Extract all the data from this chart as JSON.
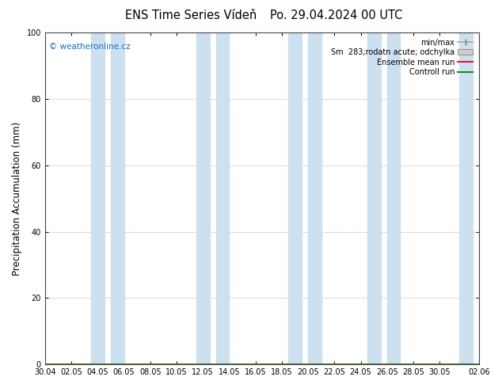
{
  "title_left": "ENS Time Series Vídeň",
  "title_right": "Po. 29.04.2024 00 UTC",
  "ylabel": "Precipitation Accumulation (mm)",
  "watermark": "© weatheronline.cz",
  "watermark_color": "#1a6fba",
  "ylim": [
    0,
    100
  ],
  "yticks": [
    0,
    20,
    40,
    60,
    80,
    100
  ],
  "x_tick_labels": [
    "30.04",
    "02.05",
    "04.05",
    "06.05",
    "08.05",
    "10.05",
    "12.05",
    "14.05",
    "16.05",
    "18.05",
    "20.05",
    "22.05",
    "24.05",
    "26.05",
    "28.05",
    "30.05",
    "02.06"
  ],
  "x_tick_positions": [
    0,
    2,
    4,
    6,
    8,
    10,
    12,
    14,
    16,
    18,
    20,
    22,
    24,
    26,
    28,
    30,
    33
  ],
  "shaded_bands": [
    [
      3.5,
      4.5
    ],
    [
      5.0,
      6.0
    ],
    [
      11.5,
      12.5
    ],
    [
      13.0,
      14.0
    ],
    [
      18.5,
      19.5
    ],
    [
      20.0,
      21.0
    ],
    [
      24.5,
      25.5
    ],
    [
      26.0,
      27.0
    ],
    [
      31.5,
      32.5
    ],
    [
      33.0,
      33.8
    ]
  ],
  "legend_labels": [
    "min/max",
    "Sm  283;rodatn acute; odchylka",
    "Ensemble mean run",
    "Controll run"
  ],
  "ensemble_mean_color": "#dd2222",
  "control_run_color": "#228822",
  "bg_color": "#ffffff",
  "plot_bg_color": "#ffffff",
  "band_color": "#cce0f0",
  "band_alpha": 1.0,
  "grid_color": "#cccccc",
  "title_fontsize": 10.5,
  "tick_fontsize": 7,
  "ylabel_fontsize": 8.5,
  "watermark_fontsize": 7.5,
  "legend_fontsize": 7
}
